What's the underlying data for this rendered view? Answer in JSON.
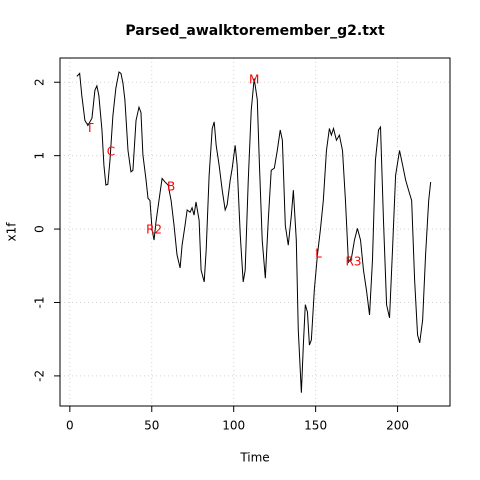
{
  "chart_data": {
    "type": "line",
    "title": "Parsed_awalktoremember_g2.txt",
    "xlabel": "Time",
    "ylabel": "x1f",
    "x": [
      4.3,
      6,
      7.3,
      9.2,
      11,
      13.5,
      15.3,
      16.5,
      17.7,
      19.6,
      20.8,
      22,
      23.2,
      24.5,
      26.3,
      28.1,
      30,
      31.2,
      32.4,
      33.6,
      35.5,
      37.3,
      38.5,
      40.4,
      42.2,
      43.4,
      44.6,
      46.5,
      47.7,
      48.9,
      50.2,
      51.4,
      52.6,
      54.4,
      56.3,
      58.1,
      60,
      61.8,
      63.6,
      65.4,
      67.3,
      68.5,
      70.3,
      71.6,
      73.4,
      74.6,
      75.8,
      77,
      78.9,
      80.1,
      82,
      83.2,
      85,
      86.9,
      88.1,
      89.3,
      91.1,
      93,
      94.8,
      96,
      97.9,
      99.1,
      100.9,
      102.1,
      104,
      105.8,
      107,
      108.9,
      110.7,
      112.5,
      114.4,
      115.6,
      117.4,
      119.3,
      121.1,
      122.9,
      124.8,
      126.6,
      128.4,
      129.7,
      131.5,
      133.3,
      135.2,
      136.4,
      138.2,
      139.4,
      141.3,
      142.5,
      143.7,
      145,
      146.2,
      147.4,
      149.2,
      151.1,
      152.9,
      154.7,
      156.6,
      158.4,
      159.6,
      160.9,
      162.7,
      164.5,
      166.4,
      168.2,
      170,
      171.9,
      173.7,
      175.5,
      177.4,
      179.2,
      181,
      182.9,
      184.7,
      186.5,
      188.4,
      189.6,
      191.4,
      193.3,
      195.1,
      196.9,
      198.8,
      201.2,
      203.1,
      204.9,
      206.7,
      208.6,
      210.4,
      212.2,
      213.5,
      215.3,
      217.1,
      219,
      220.2
    ],
    "series": [
      {
        "name": "x1f",
        "color": "#000000",
        "values": [
          2.08,
          2.12,
          1.82,
          1.48,
          1.41,
          1.51,
          1.89,
          1.95,
          1.82,
          1.35,
          0.87,
          0.6,
          0.61,
          0.94,
          1.55,
          1.92,
          2.14,
          2.12,
          1.99,
          1.76,
          1.07,
          0.78,
          0.8,
          1.48,
          1.66,
          1.59,
          1.01,
          0.67,
          0.42,
          0.39,
          -0.01,
          -0.15,
          0.1,
          0.39,
          0.69,
          0.64,
          0.6,
          0.39,
          0.05,
          -0.35,
          -0.53,
          -0.22,
          0.05,
          0.26,
          0.23,
          0.29,
          0.19,
          0.37,
          0.12,
          -0.56,
          -0.72,
          -0.29,
          0.73,
          1.37,
          1.46,
          1.14,
          0.87,
          0.53,
          0.26,
          0.33,
          0.67,
          0.83,
          1.14,
          0.87,
          -0.08,
          -0.72,
          -0.56,
          0.67,
          1.62,
          2.05,
          1.76,
          0.94,
          -0.15,
          -0.67,
          0.12,
          0.8,
          0.83,
          1.07,
          1.35,
          1.21,
          0.05,
          -0.22,
          0.19,
          0.53,
          -0.15,
          -1.37,
          -2.23,
          -1.58,
          -1.03,
          -1.13,
          -1.58,
          -1.51,
          -0.83,
          -0.35,
          -0.01,
          0.39,
          1.07,
          1.37,
          1.28,
          1.37,
          1.21,
          1.28,
          1.07,
          0.39,
          -0.45,
          -0.39,
          -0.15,
          0.01,
          -0.15,
          -0.56,
          -0.83,
          -1.17,
          -0.42,
          0.94,
          1.35,
          1.39,
          0.12,
          -1.03,
          -1.21,
          -0.29,
          0.73,
          1.07,
          0.87,
          0.67,
          0.53,
          0.39,
          -0.69,
          -1.44,
          -1.55,
          -1.24,
          -0.35,
          0.39,
          0.64
        ]
      }
    ],
    "annotations": [
      {
        "text": "T",
        "x": 12.2,
        "y": 1.37
      },
      {
        "text": "C",
        "x": 25.1,
        "y": 1.05
      },
      {
        "text": "B",
        "x": 61.8,
        "y": 0.57
      },
      {
        "text": "R2",
        "x": 51.4,
        "y": -0.01
      },
      {
        "text": "M",
        "x": 112.5,
        "y": 2.03
      },
      {
        "text": "L",
        "x": 151.7,
        "y": -0.34
      },
      {
        "text": "R3",
        "x": 173.1,
        "y": -0.45
      }
    ],
    "annotation_color": "#ff0000",
    "xlim": [
      -6,
      232
    ],
    "ylim": [
      -2.41,
      2.33
    ],
    "xticks": [
      0,
      50,
      100,
      150,
      200
    ],
    "yticks": [
      -2,
      -1,
      0,
      1,
      2
    ],
    "grid": true
  }
}
